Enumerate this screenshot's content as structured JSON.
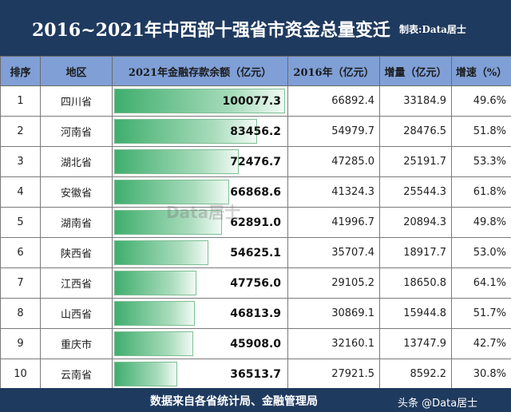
{
  "title": "2016~2021年中西部十强省市资金总量变迁",
  "author": "制表:Data居士",
  "headers": [
    "排序",
    "地区",
    "2021年金融存款余额（亿元）",
    "2016年（亿元）",
    "增量（亿元）",
    "增速（%）"
  ],
  "watermark": "Data居士",
  "footer": {
    "source": "数据来自各省统计局、金融管理局",
    "brand": "头条 @Data居士"
  },
  "colors": {
    "header_bg": "#7f9fd6",
    "title_bg": "#1f3a5f",
    "bar_green": "#3fae6d"
  },
  "chart_data": {
    "type": "table",
    "columns": [
      "排序",
      "地区",
      "2021年金融存款余额（亿元）",
      "2016年（亿元）",
      "增量（亿元）",
      "增速（%）"
    ],
    "rows": [
      {
        "rank": "1",
        "region": "四川省",
        "v2021": "100077.3",
        "v2016": "66892.4",
        "inc": "33184.9",
        "rate": "49.6%"
      },
      {
        "rank": "2",
        "region": "河南省",
        "v2021": "83456.2",
        "v2016": "54979.7",
        "inc": "28476.5",
        "rate": "51.8%"
      },
      {
        "rank": "3",
        "region": "湖北省",
        "v2021": "72476.7",
        "v2016": "47285.0",
        "inc": "25191.7",
        "rate": "53.3%"
      },
      {
        "rank": "4",
        "region": "安徽省",
        "v2021": "66868.6",
        "v2016": "41324.3",
        "inc": "25544.3",
        "rate": "61.8%"
      },
      {
        "rank": "5",
        "region": "湖南省",
        "v2021": "62891.0",
        "v2016": "41996.7",
        "inc": "20894.3",
        "rate": "49.8%"
      },
      {
        "rank": "6",
        "region": "陕西省",
        "v2021": "54625.1",
        "v2016": "35707.4",
        "inc": "18917.7",
        "rate": "53.0%"
      },
      {
        "rank": "7",
        "region": "江西省",
        "v2021": "47756.0",
        "v2016": "29105.2",
        "inc": "18650.8",
        "rate": "64.1%"
      },
      {
        "rank": "8",
        "region": "山西省",
        "v2021": "46813.9",
        "v2016": "30869.1",
        "inc": "15944.8",
        "rate": "51.7%"
      },
      {
        "rank": "9",
        "region": "重庆市",
        "v2021": "45908.0",
        "v2016": "32160.1",
        "inc": "13747.9",
        "rate": "42.7%"
      },
      {
        "rank": "10",
        "region": "云南省",
        "v2021": "36513.7",
        "v2016": "27921.5",
        "inc": "8592.2",
        "rate": "30.8%"
      }
    ]
  }
}
